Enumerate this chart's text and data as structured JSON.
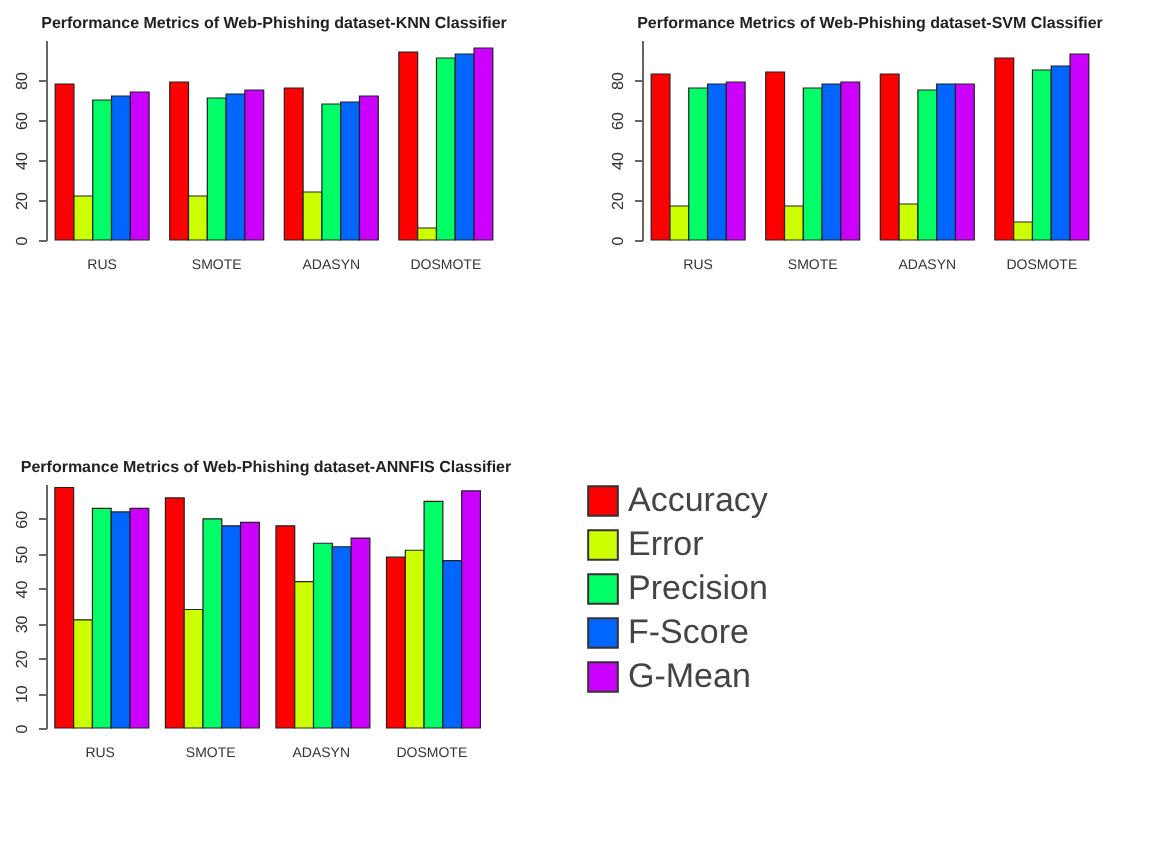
{
  "chart_data": [
    {
      "type": "bar",
      "title": "Performance Metrics of Web-Phishing dataset-KNN Classifier",
      "categories": [
        "RUS",
        "SMOTE",
        "ADASYN",
        "DOSMOTE"
      ],
      "ylim": [
        0,
        100
      ],
      "yticks": [
        0,
        20,
        40,
        60,
        80
      ],
      "grid": false,
      "series": [
        {
          "color": "#ff0000",
          "values": [
            78,
            79,
            76,
            94
          ]
        },
        {
          "color": "#ccff00",
          "values": [
            22,
            22,
            24,
            6
          ]
        },
        {
          "color": "#00ff66",
          "values": [
            70,
            71,
            68,
            91
          ]
        },
        {
          "color": "#0066ff",
          "values": [
            72,
            73,
            69,
            93
          ]
        },
        {
          "color": "#cc00ff",
          "values": [
            74,
            75,
            72,
            96
          ]
        }
      ]
    },
    {
      "type": "bar",
      "title": "Performance Metrics of Web-Phishing dataset-SVM Classifier",
      "categories": [
        "RUS",
        "SMOTE",
        "ADASYN",
        "DOSMOTE"
      ],
      "ylim": [
        0,
        100
      ],
      "yticks": [
        0,
        20,
        40,
        60,
        80
      ],
      "grid": false,
      "series": [
        {
          "color": "#ff0000",
          "values": [
            83,
            84,
            83,
            91
          ]
        },
        {
          "color": "#ccff00",
          "values": [
            17,
            17,
            18,
            9
          ]
        },
        {
          "color": "#00ff66",
          "values": [
            76,
            76,
            75,
            85
          ]
        },
        {
          "color": "#0066ff",
          "values": [
            78,
            78,
            78,
            87
          ]
        },
        {
          "color": "#cc00ff",
          "values": [
            79,
            79,
            78,
            93
          ]
        }
      ]
    },
    {
      "type": "bar",
      "title": "Performance Metrics of Web-Phishing dataset-ANNFIS Classifier",
      "categories": [
        "RUS",
        "SMOTE",
        "ADASYN",
        "DOSMOTE"
      ],
      "ylim": [
        0,
        70
      ],
      "yticks": [
        0,
        10,
        20,
        30,
        40,
        50,
        60
      ],
      "grid": false,
      "legend": "right",
      "series": [
        {
          "name": "Accuracy",
          "color": "#ff0000",
          "values": [
            69,
            66,
            58,
            49
          ]
        },
        {
          "name": "Error",
          "color": "#ccff00",
          "values": [
            31,
            34,
            42,
            51
          ]
        },
        {
          "name": "Precision",
          "color": "#00ff66",
          "values": [
            63,
            60,
            53,
            65
          ]
        },
        {
          "name": "F-Score",
          "color": "#0066ff",
          "values": [
            62,
            58,
            52,
            48
          ]
        },
        {
          "name": "G-Mean",
          "color": "#cc00ff",
          "values": [
            63,
            59,
            54.5,
            68
          ]
        }
      ]
    }
  ]
}
